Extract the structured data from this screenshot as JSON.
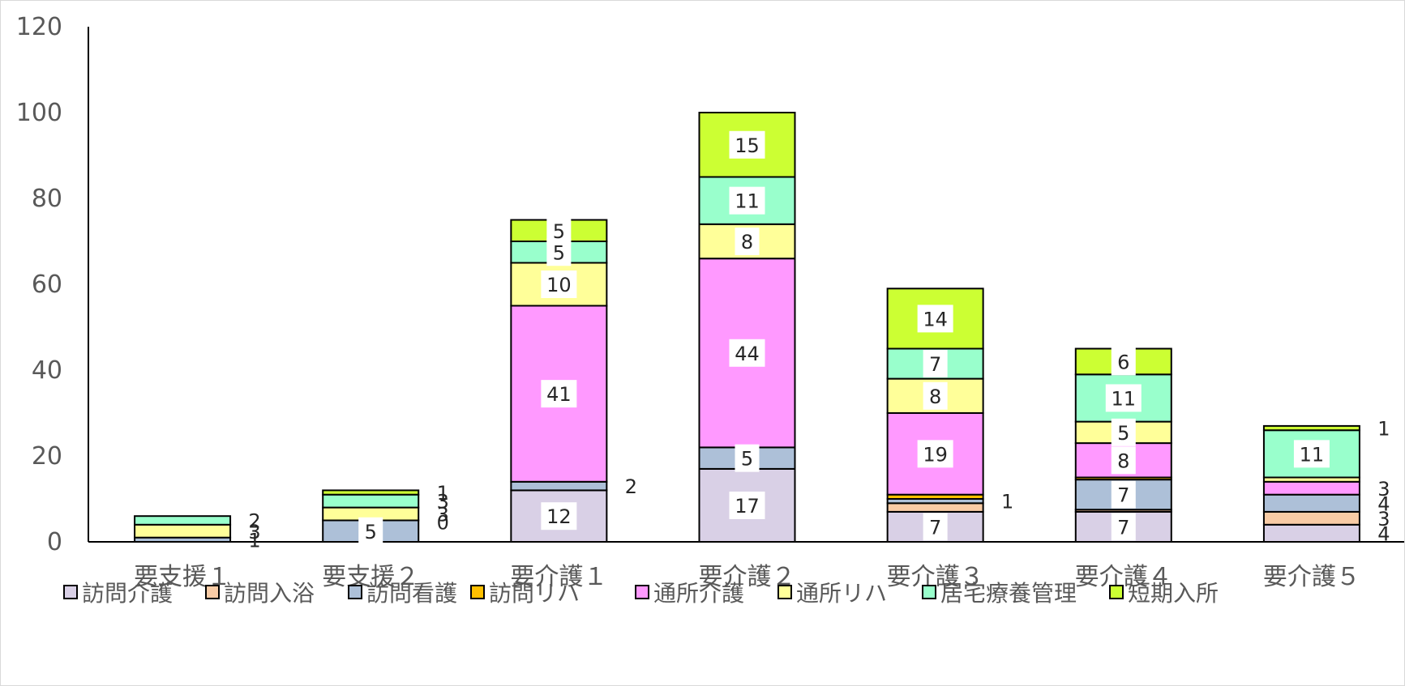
{
  "chart_data": {
    "type": "bar",
    "stacked": true,
    "categories": [
      "要支援１",
      "要支援２",
      "要介護１",
      "要介護２",
      "要介護３",
      "要介護４",
      "要介護５"
    ],
    "ylim": [
      0,
      120
    ],
    "yticks": [
      0,
      20,
      40,
      60,
      80,
      100,
      120
    ],
    "legend_position": "bottom",
    "grid": false,
    "series": [
      {
        "name": "訪問介護",
        "color": "#d9d0e6",
        "values": [
          0,
          0,
          12,
          17,
          7,
          7,
          4
        ],
        "labels": [
          "",
          "",
          "12",
          "17",
          "7",
          "7",
          "4"
        ]
      },
      {
        "name": "訪問入浴",
        "color": "#f8cba5",
        "values": [
          0,
          0,
          0,
          0,
          2,
          0.5,
          3
        ],
        "labels": [
          "",
          "",
          "",
          "",
          "",
          "",
          "3"
        ]
      },
      {
        "name": "訪問看護",
        "color": "#adc0d8",
        "values": [
          1,
          5,
          2,
          5,
          1,
          7,
          4
        ],
        "labels": [
          "1",
          "5",
          "2",
          "5",
          "1",
          "7",
          "4"
        ]
      },
      {
        "name": "訪問リハ",
        "color": "#ffc000",
        "values": [
          0,
          0,
          0,
          0,
          1,
          0.5,
          0
        ],
        "labels": [
          "",
          "0",
          "",
          "",
          "",
          "",
          ""
        ]
      },
      {
        "name": "通所介護",
        "color": "#ff99ff",
        "values": [
          0,
          0,
          41,
          44,
          19,
          8,
          3
        ],
        "labels": [
          "",
          "",
          "41",
          "44",
          "19",
          "8",
          "3"
        ]
      },
      {
        "name": "通所リハ",
        "color": "#ffff99",
        "values": [
          3,
          3,
          10,
          8,
          8,
          5,
          1
        ],
        "labels": [
          "3",
          "3",
          "10",
          "8",
          "8",
          "5",
          ""
        ]
      },
      {
        "name": "居宅療養管理",
        "color": "#99ffcc",
        "values": [
          2,
          3,
          5,
          11,
          7,
          11,
          11
        ],
        "labels": [
          "2",
          "3",
          "5",
          "11",
          "7",
          "11",
          "11"
        ]
      },
      {
        "name": "短期入所",
        "color": "#ccff33",
        "values": [
          0,
          1,
          5,
          15,
          14,
          6,
          1
        ],
        "labels": [
          "",
          "1",
          "5",
          "15",
          "14",
          "6",
          "1"
        ]
      }
    ]
  }
}
